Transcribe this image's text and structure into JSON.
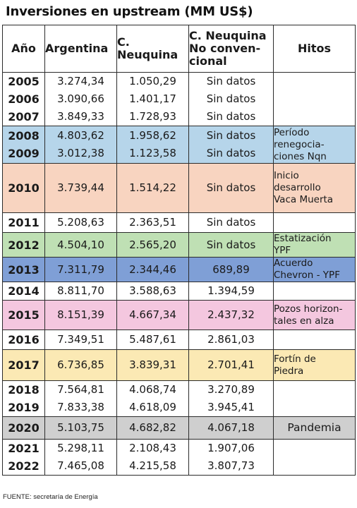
{
  "title": "Inversiones en upstream (MM US$)",
  "headers": {
    "year": "Año",
    "argentina": "Argentina",
    "neuquina_l1": "C.",
    "neuquina_l2": "Neuquina",
    "nc_l1": "C. Neuquina",
    "nc_l2": "No conven-",
    "nc_l3": "cional",
    "hitos": "Hitos"
  },
  "groups": [
    {
      "color": "#ffffff",
      "rows": [
        {
          "year": "2005",
          "argentina": "3.274,34",
          "neuquina": "1.050,29",
          "no_convencional": "Sin datos"
        },
        {
          "year": "2006",
          "argentina": "3.090,66",
          "neuquina": "1.401,17",
          "no_convencional": "Sin datos"
        },
        {
          "year": "2007",
          "argentina": "3.849,33",
          "neuquina": "1.728,93",
          "no_convencional": "Sin datos"
        }
      ],
      "hito": []
    },
    {
      "color": "#b6d5ea",
      "rows": [
        {
          "year": "2008",
          "argentina": "4.803,62",
          "neuquina": "1.958,62",
          "no_convencional": "Sin datos"
        },
        {
          "year": "2009",
          "argentina": "3.012,38",
          "neuquina": "1.123,58",
          "no_convencional": "Sin datos"
        }
      ],
      "hito": [
        "Período",
        "renegocia-",
        "ciones Nqn"
      ]
    },
    {
      "color": "#f8d4c0",
      "rows": [
        {
          "year": "2010",
          "argentina": "3.739,44",
          "neuquina": "1.514,22",
          "no_convencional": "Sin datos"
        }
      ],
      "hito": [
        "Inicio",
        "desarrollo",
        "Vaca Muerta"
      ]
    },
    {
      "color": "#ffffff",
      "rows": [
        {
          "year": "2011",
          "argentina": "5.208,63",
          "neuquina": "2.363,51",
          "no_convencional": "Sin datos"
        }
      ],
      "hito": []
    },
    {
      "color": "#bfe0b4",
      "rows": [
        {
          "year": "2012",
          "argentina": "4.504,10",
          "neuquina": "2.565,20",
          "no_convencional": "Sin datos"
        }
      ],
      "hito": [
        "Estatización",
        "YPF"
      ]
    },
    {
      "color": "#7f9fd6",
      "rows": [
        {
          "year": "2013",
          "argentina": "7.311,79",
          "neuquina": "2.344,46",
          "no_convencional": "689,89"
        }
      ],
      "hito": [
        "Acuerdo",
        "Chevron - YPF"
      ]
    },
    {
      "color": "#ffffff",
      "rows": [
        {
          "year": "2014",
          "argentina": "8.811,70",
          "neuquina": "3.588,63",
          "no_convencional": "1.394,59"
        }
      ],
      "hito": []
    },
    {
      "color": "#f4c7df",
      "rows": [
        {
          "year": "2015",
          "argentina": "8.151,39",
          "neuquina": "4.667,34",
          "no_convencional": "2.437,32"
        }
      ],
      "hito": [
        "Pozos horizon-",
        "tales en alza"
      ]
    },
    {
      "color": "#ffffff",
      "rows": [
        {
          "year": "2016",
          "argentina": "7.349,51",
          "neuquina": "5.487,61",
          "no_convencional": "2.861,03"
        }
      ],
      "hito": []
    },
    {
      "color": "#fbe9b4",
      "rows": [
        {
          "year": "2017",
          "argentina": "6.736,85",
          "neuquina": "3.839,31",
          "no_convencional": "2.701,41"
        }
      ],
      "hito": [
        "Fortín de",
        "Piedra"
      ]
    },
    {
      "color": "#ffffff",
      "rows": [
        {
          "year": "2018",
          "argentina": "7.564,81",
          "neuquina": "4.068,74",
          "no_convencional": "3.270,89"
        },
        {
          "year": "2019",
          "argentina": "7.833,38",
          "neuquina": "4.618,09",
          "no_convencional": "3.945,41"
        }
      ],
      "hito": []
    },
    {
      "color": "#cfcfcf",
      "rows": [
        {
          "year": "2020",
          "argentina": "5.103,75",
          "neuquina": "4.682,82",
          "no_convencional": "4.067,18"
        }
      ],
      "hito": [
        "Pandemia"
      ],
      "hito_center": true
    },
    {
      "color": "#ffffff",
      "rows": [
        {
          "year": "2021",
          "argentina": "5.298,11",
          "neuquina": "2.108,43",
          "no_convencional": "1.907,06"
        },
        {
          "year": "2022",
          "argentina": "7.465,08",
          "neuquina": "4.215,58",
          "no_convencional": "3.807,73"
        }
      ],
      "hito": []
    }
  ],
  "footer": "FUENTE: secretaría de Energía"
}
